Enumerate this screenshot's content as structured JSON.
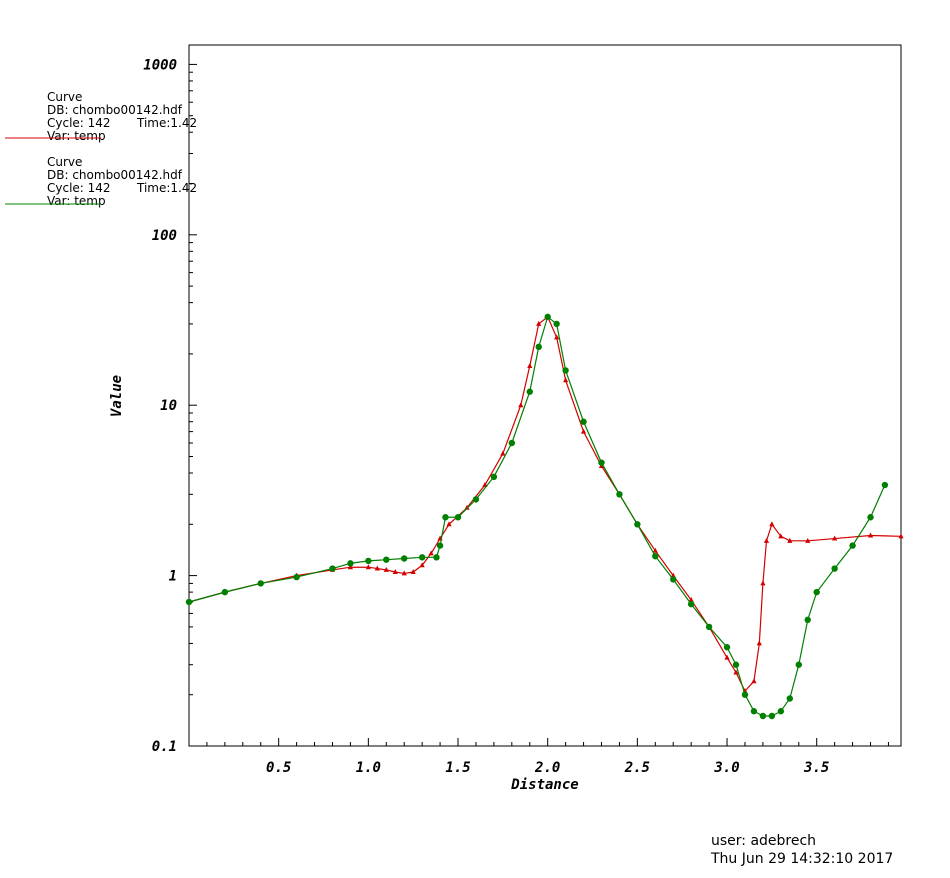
{
  "chart_data": {
    "type": "line",
    "xlabel": "Distance",
    "ylabel": "Value",
    "xlim": [
      0.0,
      3.97
    ],
    "ylim": [
      0.1,
      1300
    ],
    "yscale": "log",
    "x_ticks": [
      "0.5",
      "1.0",
      "1.5",
      "2.0",
      "2.5",
      "3.0",
      "3.5"
    ],
    "y_ticks": [
      "0.1",
      "1",
      "10",
      "100",
      "1000"
    ],
    "grid": false,
    "series": [
      {
        "color": "#d40000",
        "marker": "triangle",
        "x": [
          0.0,
          0.2,
          0.4,
          0.6,
          0.8,
          0.9,
          1.0,
          1.05,
          1.1,
          1.15,
          1.2,
          1.25,
          1.3,
          1.35,
          1.4,
          1.45,
          1.55,
          1.65,
          1.75,
          1.85,
          1.9,
          1.95,
          2.0,
          2.05,
          2.1,
          2.2,
          2.3,
          2.4,
          2.5,
          2.6,
          2.7,
          2.8,
          2.9,
          3.0,
          3.05,
          3.1,
          3.15,
          3.18,
          3.2,
          3.22,
          3.25,
          3.3,
          3.35,
          3.45,
          3.6,
          3.8,
          3.97
        ],
        "y": [
          0.7,
          0.8,
          0.9,
          1.0,
          1.08,
          1.12,
          1.12,
          1.1,
          1.08,
          1.05,
          1.03,
          1.05,
          1.15,
          1.35,
          1.65,
          2.0,
          2.5,
          3.4,
          5.2,
          10.0,
          17.0,
          30.0,
          33.0,
          25.0,
          14.0,
          7.0,
          4.4,
          3.0,
          2.0,
          1.4,
          1.0,
          0.72,
          0.5,
          0.33,
          0.27,
          0.21,
          0.24,
          0.4,
          0.9,
          1.6,
          2.0,
          1.7,
          1.6,
          1.6,
          1.65,
          1.72,
          1.7
        ]
      },
      {
        "color": "#008000",
        "marker": "circle",
        "x": [
          0.0,
          0.2,
          0.4,
          0.6,
          0.8,
          0.9,
          1.0,
          1.1,
          1.2,
          1.3,
          1.38,
          1.4,
          1.43,
          1.5,
          1.6,
          1.7,
          1.8,
          1.9,
          1.95,
          2.0,
          2.05,
          2.1,
          2.2,
          2.3,
          2.4,
          2.5,
          2.6,
          2.7,
          2.8,
          2.9,
          3.0,
          3.05,
          3.1,
          3.15,
          3.2,
          3.25,
          3.3,
          3.35,
          3.4,
          3.45,
          3.5,
          3.6,
          3.7,
          3.8,
          3.88
        ],
        "y": [
          0.7,
          0.8,
          0.9,
          0.98,
          1.1,
          1.18,
          1.22,
          1.24,
          1.26,
          1.28,
          1.28,
          1.5,
          2.2,
          2.2,
          2.8,
          3.8,
          6.0,
          12.0,
          22.0,
          33.0,
          30.0,
          16.0,
          8.0,
          4.6,
          3.0,
          2.0,
          1.3,
          0.95,
          0.68,
          0.5,
          0.38,
          0.3,
          0.2,
          0.16,
          0.15,
          0.15,
          0.16,
          0.19,
          0.3,
          0.55,
          0.8,
          1.1,
          1.5,
          2.2,
          3.4
        ]
      }
    ]
  },
  "legend": [
    {
      "title": "Curve",
      "db": "DB: chombo00142.hdf",
      "cycle": "Cycle: 142",
      "time": "Time:1.42",
      "var": "Var: temp",
      "color": "#d40000"
    },
    {
      "title": "Curve",
      "db": "DB: chombo00142.hdf",
      "cycle": "Cycle: 142",
      "time": "Time:1.42",
      "var": "Var: temp",
      "color": "#008000"
    }
  ],
  "footer": {
    "user": "user: adebrech",
    "date": "Thu Jun 29 14:32:10 2017"
  }
}
